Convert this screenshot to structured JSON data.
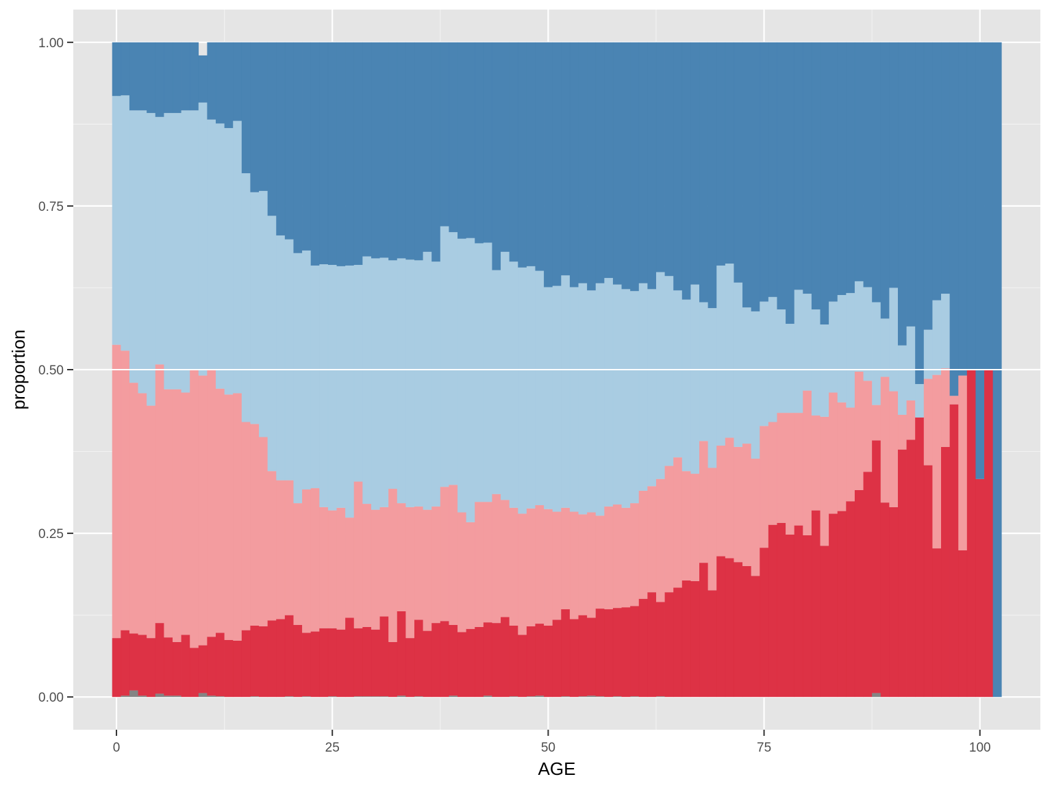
{
  "chart_data": {
    "type": "bar",
    "stacking": "fill",
    "xlabel": "AGE",
    "ylabel": "proportion",
    "xlim": [
      -5,
      107
    ],
    "ylim": [
      -0.05,
      1.05
    ],
    "x_ticks": [
      0,
      25,
      50,
      75,
      100
    ],
    "x_tick_labels": [
      "0",
      "25",
      "50",
      "75",
      "100"
    ],
    "y_ticks": [
      0,
      0.25,
      0.5,
      0.75,
      1
    ],
    "y_tick_labels": [
      "0.00",
      "0.25",
      "0.50",
      "0.75",
      "1.00"
    ],
    "grid": true,
    "legend": "none",
    "background": "#E5E5E5",
    "bin_width": 1,
    "x": [
      0,
      1,
      2,
      3,
      4,
      5,
      6,
      7,
      8,
      9,
      10,
      11,
      12,
      13,
      14,
      15,
      16,
      17,
      18,
      19,
      20,
      21,
      22,
      23,
      24,
      25,
      26,
      27,
      28,
      29,
      30,
      31,
      32,
      33,
      34,
      35,
      36,
      37,
      38,
      39,
      40,
      41,
      42,
      43,
      44,
      45,
      46,
      47,
      48,
      49,
      50,
      51,
      52,
      53,
      54,
      55,
      56,
      57,
      58,
      59,
      60,
      61,
      62,
      63,
      64,
      65,
      66,
      67,
      68,
      69,
      70,
      71,
      72,
      73,
      74,
      75,
      76,
      77,
      78,
      79,
      80,
      81,
      82,
      83,
      84,
      85,
      86,
      87,
      88,
      89,
      90,
      91,
      92,
      93,
      94,
      95,
      96,
      97,
      98,
      99,
      100,
      101,
      102
    ],
    "series": [
      {
        "color": "#808080",
        "values": [
          0.0,
          0.002,
          0.01,
          0.002,
          0.0,
          0.005,
          0.002,
          0.002,
          0.0,
          0.0,
          0.006,
          0.002,
          0.001,
          0.0,
          0.0,
          0.0,
          0.001,
          0.0,
          0.0,
          0.0,
          0.001,
          0.0,
          0.001,
          0.0,
          0.0,
          0.001,
          0.0,
          0.0,
          0.001,
          0.001,
          0.001,
          0.001,
          0.0,
          0.002,
          0.0,
          0.001,
          0.0,
          0.0,
          0.0,
          0.002,
          0.0,
          0.0,
          0.0,
          0.002,
          0.0,
          0.0,
          0.001,
          0.0,
          0.001,
          0.002,
          0.0,
          0.0,
          0.001,
          0.0,
          0.001,
          0.002,
          0.001,
          0.0,
          0.001,
          0.0,
          0.001,
          0.0,
          0.0,
          0.001,
          0.0,
          0.0,
          0.0,
          0.0,
          0.0,
          0.0,
          0.0,
          0.0,
          0.0,
          0.0,
          0.0,
          0.0,
          0.0,
          0.0,
          0.0,
          0.0,
          0.0,
          0.0,
          0.0,
          0.0,
          0.0,
          0.0,
          0.0,
          0.0,
          0.006,
          0.0,
          0.0,
          0.0,
          0.0,
          0.0,
          0.0,
          0.0,
          0.0,
          0.0,
          0.0,
          0.0,
          0.0,
          0.0,
          0.0
        ]
      },
      {
        "color": "#DC2B3F",
        "values": [
          0.09,
          0.1,
          0.087,
          0.093,
          0.09,
          0.108,
          0.089,
          0.082,
          0.095,
          0.075,
          0.073,
          0.09,
          0.097,
          0.087,
          0.086,
          0.102,
          0.108,
          0.108,
          0.117,
          0.119,
          0.124,
          0.11,
          0.097,
          0.1,
          0.105,
          0.104,
          0.103,
          0.121,
          0.104,
          0.106,
          0.102,
          0.122,
          0.084,
          0.129,
          0.09,
          0.117,
          0.101,
          0.113,
          0.116,
          0.108,
          0.099,
          0.104,
          0.107,
          0.112,
          0.113,
          0.122,
          0.108,
          0.095,
          0.107,
          0.11,
          0.109,
          0.118,
          0.133,
          0.119,
          0.124,
          0.119,
          0.134,
          0.134,
          0.135,
          0.137,
          0.138,
          0.15,
          0.16,
          0.144,
          0.16,
          0.167,
          0.178,
          0.177,
          0.205,
          0.163,
          0.215,
          0.212,
          0.206,
          0.2,
          0.185,
          0.228,
          0.263,
          0.266,
          0.248,
          0.262,
          0.247,
          0.285,
          0.231,
          0.28,
          0.284,
          0.299,
          0.316,
          0.344,
          0.386,
          0.297,
          0.29,
          0.378,
          0.393,
          0.427,
          0.354,
          0.227,
          0.382,
          0.447,
          0.224,
          0.5,
          0.333,
          0.5,
          0.0
        ]
      },
      {
        "color": "#F3999C",
        "values": [
          0.448,
          0.427,
          0.383,
          0.369,
          0.355,
          0.395,
          0.379,
          0.386,
          0.37,
          0.425,
          0.412,
          0.408,
          0.373,
          0.375,
          0.378,
          0.318,
          0.308,
          0.289,
          0.228,
          0.212,
          0.206,
          0.186,
          0.219,
          0.219,
          0.185,
          0.18,
          0.186,
          0.153,
          0.224,
          0.188,
          0.183,
          0.167,
          0.234,
          0.165,
          0.2,
          0.173,
          0.185,
          0.178,
          0.205,
          0.214,
          0.183,
          0.163,
          0.191,
          0.184,
          0.197,
          0.179,
          0.18,
          0.185,
          0.18,
          0.181,
          0.178,
          0.165,
          0.155,
          0.164,
          0.154,
          0.161,
          0.142,
          0.157,
          0.158,
          0.152,
          0.157,
          0.165,
          0.162,
          0.188,
          0.193,
          0.199,
          0.167,
          0.164,
          0.186,
          0.187,
          0.169,
          0.184,
          0.176,
          0.187,
          0.179,
          0.186,
          0.157,
          0.168,
          0.186,
          0.172,
          0.221,
          0.145,
          0.197,
          0.185,
          0.166,
          0.143,
          0.181,
          0.139,
          0.054,
          0.192,
          0.177,
          0.053,
          0.06,
          0.0,
          0.132,
          0.265,
          0.12,
          0.013,
          0.267,
          0.0,
          0.0,
          0.0,
          0.0
        ]
      },
      {
        "color": "#A6CAE1",
        "values": [
          0.38,
          0.39,
          0.416,
          0.432,
          0.447,
          0.378,
          0.422,
          0.422,
          0.431,
          0.396,
          0.417,
          0.382,
          0.405,
          0.407,
          0.416,
          0.38,
          0.354,
          0.376,
          0.39,
          0.374,
          0.368,
          0.382,
          0.365,
          0.34,
          0.371,
          0.375,
          0.369,
          0.385,
          0.331,
          0.378,
          0.384,
          0.381,
          0.349,
          0.374,
          0.378,
          0.376,
          0.394,
          0.374,
          0.398,
          0.386,
          0.418,
          0.434,
          0.395,
          0.396,
          0.342,
          0.379,
          0.376,
          0.376,
          0.37,
          0.358,
          0.339,
          0.345,
          0.355,
          0.343,
          0.353,
          0.339,
          0.355,
          0.349,
          0.336,
          0.334,
          0.324,
          0.317,
          0.301,
          0.316,
          0.29,
          0.255,
          0.262,
          0.289,
          0.212,
          0.244,
          0.275,
          0.266,
          0.251,
          0.208,
          0.225,
          0.19,
          0.191,
          0.158,
          0.136,
          0.188,
          0.148,
          0.162,
          0.141,
          0.139,
          0.164,
          0.175,
          0.138,
          0.143,
          0.157,
          0.089,
          0.158,
          0.106,
          0.113,
          0.051,
          0.075,
          0.114,
          0.114,
          0.0,
          0.0,
          0.0,
          0.0,
          0.0,
          0.0
        ]
      },
      {
        "color": "#4480B1",
        "values": [
          0.082,
          0.081,
          0.104,
          0.104,
          0.108,
          0.114,
          0.108,
          0.108,
          0.104,
          0.104,
          0.072,
          0.118,
          0.124,
          0.131,
          0.12,
          0.2,
          0.229,
          0.227,
          0.265,
          0.295,
          0.301,
          0.322,
          0.318,
          0.341,
          0.339,
          0.34,
          0.342,
          0.341,
          0.34,
          0.327,
          0.33,
          0.329,
          0.333,
          0.33,
          0.332,
          0.333,
          0.32,
          0.335,
          0.281,
          0.29,
          0.3,
          0.299,
          0.307,
          0.306,
          0.348,
          0.32,
          0.335,
          0.344,
          0.342,
          0.349,
          0.374,
          0.372,
          0.356,
          0.374,
          0.368,
          0.379,
          0.368,
          0.36,
          0.37,
          0.377,
          0.38,
          0.368,
          0.377,
          0.351,
          0.357,
          0.379,
          0.393,
          0.37,
          0.397,
          0.406,
          0.341,
          0.338,
          0.367,
          0.405,
          0.411,
          0.396,
          0.389,
          0.408,
          0.43,
          0.378,
          0.384,
          0.408,
          0.431,
          0.396,
          0.386,
          0.383,
          0.365,
          0.374,
          0.397,
          0.422,
          0.375,
          0.463,
          0.434,
          0.522,
          0.439,
          0.394,
          0.384,
          0.54,
          0.509,
          0.5,
          0.667,
          0.5,
          1.0
        ]
      }
    ]
  }
}
